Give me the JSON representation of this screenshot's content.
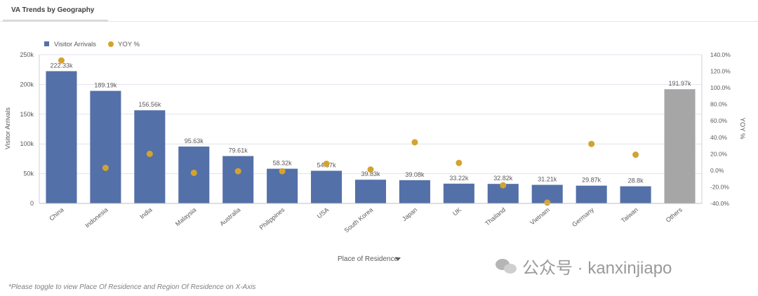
{
  "header": {
    "tab_title": "VA Trends by Geography"
  },
  "legend": {
    "bar_label": "Visitor Arrivals",
    "dot_label": "YOY %"
  },
  "axes": {
    "left_title": "Visitor Arrivals",
    "right_title": "YOY %",
    "x_title": "Place of Residence"
  },
  "footer_note": "*Please toggle to view Place Of Residence and Region Of Residence on X-Axis",
  "watermark": {
    "text": "公众号 · kanxinjiapo"
  },
  "colors": {
    "bar": "#5470a8",
    "others_bar": "#a6a6a6",
    "dot": "#d4a32f",
    "grid": "#e4e1ee"
  },
  "chart_data": {
    "type": "bar",
    "title": "VA Trends by Geography",
    "xlabel": "Place of Residence",
    "ylabel": "Visitor Arrivals",
    "y2label": "YOY %",
    "ylim": [
      0,
      250000
    ],
    "y2lim": [
      -40,
      140
    ],
    "yticks": [
      "0",
      "50k",
      "100k",
      "150k",
      "200k",
      "250k"
    ],
    "y2ticks": [
      "-40.0%",
      "-20.0%",
      "0.0%",
      "20.0%",
      "40.0%",
      "60.0%",
      "80.0%",
      "100.0%",
      "120.0%",
      "140.0%"
    ],
    "categories": [
      "China",
      "Indonesia",
      "India",
      "Malaysia",
      "Australia",
      "Philippines",
      "USA",
      "South Korea",
      "Japan",
      "UK",
      "Thailand",
      "Vietnam",
      "Germany",
      "Taiwan",
      "Others"
    ],
    "series": [
      {
        "name": "Visitor Arrivals",
        "kind": "bar",
        "values": [
          222330,
          189190,
          156560,
          95630,
          79610,
          58320,
          54870,
          39830,
          39080,
          33220,
          32820,
          31210,
          29870,
          28800,
          191970
        ],
        "labels": [
          "222.33k",
          "189.19k",
          "156.56k",
          "95.63k",
          "79.61k",
          "58.32k",
          "54.87k",
          "39.83k",
          "39.08k",
          "33.22k",
          "32.82k",
          "31.21k",
          "29.87k",
          "28.8k",
          "191.97k"
        ]
      },
      {
        "name": "YOY %",
        "kind": "scatter",
        "axis": "right",
        "values": [
          133,
          3,
          20,
          -3,
          -1,
          -1,
          8,
          1,
          34,
          9,
          -18,
          -39,
          32,
          19,
          null
        ]
      }
    ],
    "legend_position": "top-left",
    "grid": true
  }
}
